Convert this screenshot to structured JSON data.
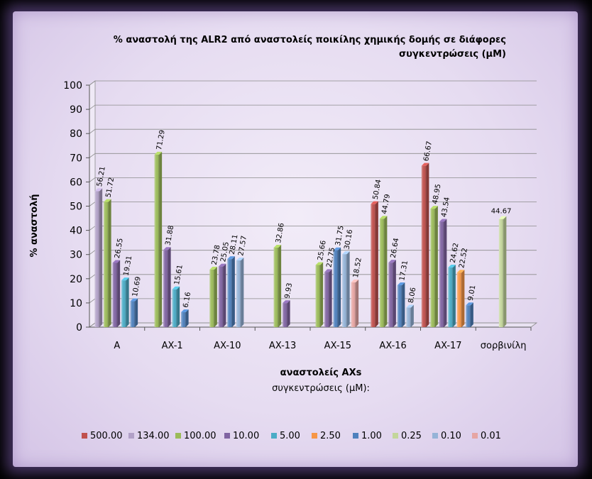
{
  "chart_data": {
    "type": "bar",
    "title_lines": [
      "% αναστολή της ALR2 από αναστολείς ποικίλης χημικής δομής σε διάφορες",
      "συγκεντρώσεις (μΜ)"
    ],
    "ylabel": "% αναστολή",
    "xlabel": "αναστολείς AXs",
    "xlabel_sub": "συγκεντρώσεις (μΜ):",
    "ylim": [
      0,
      100
    ],
    "yticks": [
      "0",
      "10",
      "20",
      "30",
      "40",
      "50",
      "60",
      "70",
      "80",
      "90",
      "100"
    ],
    "categories": [
      "A",
      "AX-1",
      "AX-10",
      "AX-13",
      "AX-15",
      "AX-16",
      "AX-17",
      "σορβινίλη"
    ],
    "series": [
      {
        "name": "500.00",
        "color": "#c0504d",
        "values": [
          null,
          null,
          null,
          null,
          null,
          50.84,
          66.67,
          null
        ]
      },
      {
        "name": "134.00",
        "color": "#b1a0c7",
        "values": [
          56.21,
          null,
          null,
          null,
          null,
          null,
          null,
          null
        ]
      },
      {
        "name": "100.00",
        "color": "#9bbb59",
        "values": [
          51.72,
          71.29,
          23.78,
          32.86,
          25.66,
          44.79,
          48.95,
          null
        ]
      },
      {
        "name": "10.00",
        "color": "#8064a2",
        "values": [
          26.55,
          31.88,
          25.05,
          9.93,
          22.75,
          26.64,
          43.54,
          null
        ]
      },
      {
        "name": "5.00",
        "color": "#4bacc6",
        "values": [
          19.31,
          15.61,
          null,
          null,
          null,
          null,
          24.62,
          null
        ]
      },
      {
        "name": "2.50",
        "color": "#f79646",
        "values": [
          null,
          null,
          null,
          null,
          null,
          null,
          22.52,
          null
        ]
      },
      {
        "name": "1.00",
        "color": "#4f81bd",
        "values": [
          10.69,
          6.16,
          28.11,
          null,
          31.75,
          17.31,
          9.01,
          null
        ]
      },
      {
        "name": "0.25",
        "color": "#c3d69b",
        "values": [
          null,
          null,
          null,
          null,
          null,
          null,
          null,
          44.67
        ]
      },
      {
        "name": "0.10",
        "color": "#95b3d7",
        "values": [
          null,
          null,
          27.57,
          null,
          30.16,
          8.06,
          null,
          null
        ]
      },
      {
        "name": "0.01",
        "color": "#e6a5a3",
        "values": [
          null,
          null,
          null,
          null,
          18.52,
          null,
          null,
          null
        ]
      }
    ],
    "labels": [
      [
        "56.21",
        "51.72",
        "26.55",
        "19.31",
        "10.69"
      ],
      [
        "71.29",
        "31.88",
        "15.61",
        "6.16"
      ],
      [
        "23.78",
        "25.05",
        "28.11",
        "27.57"
      ],
      [
        "32.86",
        "9.93"
      ],
      [
        "25.66",
        "22.75",
        "31.75",
        "30.16",
        "18.52"
      ],
      [
        "50.84",
        "44.79",
        "26.64",
        "17.31",
        "8.06"
      ],
      [
        "66.67",
        "48.95",
        "43.54",
        "24.62",
        "22.52",
        "9.01"
      ],
      [
        "44.67"
      ]
    ],
    "legend_position": "bottom",
    "grid": true
  }
}
